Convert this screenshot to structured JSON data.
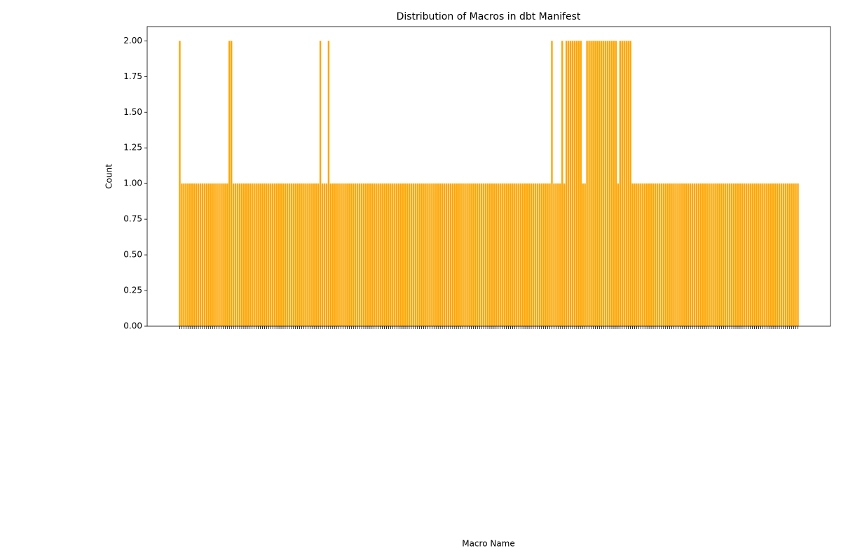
{
  "chart_data": {
    "type": "bar",
    "title": "Distribution of Macros in dbt Manifest",
    "x_label": "Macro Name",
    "y_label": "Count",
    "color": "#ffa500",
    "ylim": [
      0,
      2.1
    ],
    "yticks": [
      {
        "value": 0,
        "label": "0.00"
      },
      {
        "value": 0.25,
        "label": "0.25"
      },
      {
        "value": 0.5,
        "label": "0.50"
      },
      {
        "value": 0.75,
        "label": "0.75"
      },
      {
        "value": 1,
        "label": "1.00"
      },
      {
        "value": 1.25,
        "label": "1.25"
      },
      {
        "value": 1.5,
        "label": "1.50"
      },
      {
        "value": 1.75,
        "label": "1.75"
      },
      {
        "value": 2,
        "label": "2.00"
      }
    ],
    "categories": [
      null,
      null,
      null,
      null,
      null,
      null,
      null,
      null,
      null,
      null,
      null,
      null,
      null,
      null,
      null,
      null,
      null,
      null,
      null,
      null,
      null,
      null,
      null,
      null,
      null,
      null,
      null,
      null,
      null,
      null,
      null,
      null,
      null,
      null,
      null,
      null,
      null,
      null,
      null,
      null,
      null,
      null,
      null,
      null,
      null,
      null,
      null,
      null,
      null,
      null,
      null,
      null,
      null,
      null,
      null,
      null,
      null,
      null,
      null,
      null,
      null,
      null,
      null,
      null,
      null,
      null,
      null,
      null,
      null,
      null,
      null,
      null,
      null,
      null,
      null,
      null,
      null,
      null,
      null,
      null,
      null,
      null,
      null,
      null,
      null,
      null,
      null,
      null,
      null,
      null,
      null,
      null,
      null,
      null,
      null,
      null,
      null,
      null,
      null,
      null,
      null,
      null,
      null,
      null,
      null,
      null,
      null,
      null,
      null,
      null,
      null,
      null,
      null,
      null,
      null,
      null,
      null,
      null,
      null,
      null,
      null,
      null,
      null,
      null,
      null,
      null,
      null,
      null,
      null,
      null,
      null,
      null,
      null,
      null,
      null,
      null,
      null,
      null,
      null,
      null,
      null,
      null,
      null,
      null,
      null,
      null,
      null,
      null,
      null,
      null,
      null,
      null,
      null,
      null,
      null,
      null,
      null,
      null,
      null,
      null,
      null,
      null,
      null,
      null,
      null,
      null,
      null,
      null,
      null,
      null,
      null,
      null,
      null,
      null,
      null,
      null,
      null,
      null,
      null,
      null,
      null,
      null,
      null,
      null,
      null,
      null,
      null,
      null,
      null,
      null,
      null,
      null,
      null,
      null,
      null,
      null,
      null,
      null,
      null,
      null,
      null,
      null,
      null,
      null,
      null,
      null,
      null,
      null,
      null,
      null,
      null,
      null,
      null,
      null,
      null,
      null,
      null,
      null,
      null,
      null,
      null,
      null,
      null,
      null,
      null,
      null,
      null,
      null,
      null,
      null,
      null,
      null,
      null,
      null,
      null,
      null,
      null,
      null,
      null,
      null,
      null,
      null,
      null,
      null,
      null,
      null,
      null,
      null,
      null,
      null,
      null,
      null,
      null,
      null,
      null,
      null,
      null,
      null,
      null,
      null,
      null,
      null,
      null,
      null,
      null,
      null,
      null,
      null,
      null,
      null,
      null,
      null,
      null,
      null,
      null,
      null,
      null,
      null,
      null,
      null,
      null,
      null,
      null,
      null,
      null,
      null,
      null,
      null,
      null,
      null,
      null,
      null,
      null,
      null,
      null,
      null,
      null,
      null,
      null,
      null
    ],
    "values": [
      2,
      1,
      1,
      1,
      1,
      1,
      1,
      1,
      1,
      1,
      1,
      1,
      1,
      1,
      1,
      1,
      1,
      1,
      1,
      1,
      1,
      1,
      1,
      1,
      2,
      2,
      1,
      1,
      1,
      1,
      1,
      1,
      1,
      1,
      1,
      1,
      1,
      1,
      1,
      1,
      1,
      1,
      1,
      1,
      1,
      1,
      1,
      1,
      1,
      1,
      1,
      1,
      1,
      1,
      1,
      1,
      1,
      1,
      1,
      1,
      1,
      1,
      1,
      1,
      1,
      1,
      1,
      1,
      2,
      1,
      1,
      1,
      2,
      1,
      1,
      1,
      1,
      1,
      1,
      1,
      1,
      1,
      1,
      1,
      1,
      1,
      1,
      1,
      1,
      1,
      1,
      1,
      1,
      1,
      1,
      1,
      1,
      1,
      1,
      1,
      1,
      1,
      1,
      1,
      1,
      1,
      1,
      1,
      1,
      1,
      1,
      1,
      1,
      1,
      1,
      1,
      1,
      1,
      1,
      1,
      1,
      1,
      1,
      1,
      1,
      1,
      1,
      1,
      1,
      1,
      1,
      1,
      1,
      1,
      1,
      1,
      1,
      1,
      1,
      1,
      1,
      1,
      1,
      1,
      1,
      1,
      1,
      1,
      1,
      1,
      1,
      1,
      1,
      1,
      1,
      1,
      1,
      1,
      1,
      1,
      1,
      1,
      1,
      1,
      1,
      1,
      1,
      1,
      1,
      1,
      1,
      1,
      1,
      1,
      1,
      1,
      1,
      1,
      1,
      1,
      2,
      1,
      1,
      1,
      1,
      2,
      1,
      2,
      2,
      2,
      2,
      2,
      2,
      2,
      2,
      1,
      1,
      2,
      2,
      2,
      2,
      2,
      2,
      2,
      2,
      2,
      2,
      2,
      2,
      2,
      2,
      2,
      1,
      2,
      2,
      2,
      2,
      2,
      2,
      1,
      1,
      1,
      1,
      1,
      1,
      1,
      1,
      1,
      1,
      1,
      1,
      1,
      1,
      1,
      1,
      1,
      1,
      1,
      1,
      1,
      1,
      1,
      1,
      1,
      1,
      1,
      1,
      1,
      1,
      1,
      1,
      1,
      1,
      1,
      1,
      1,
      1,
      1,
      1,
      1,
      1,
      1,
      1,
      1,
      1,
      1,
      1,
      1,
      1,
      1,
      1,
      1,
      1,
      1,
      1,
      1,
      1,
      1,
      1,
      1,
      1,
      1,
      1,
      1,
      1,
      1,
      1,
      1,
      1,
      1,
      1,
      1,
      1,
      1,
      1,
      1,
      1,
      1,
      1,
      1
    ]
  }
}
